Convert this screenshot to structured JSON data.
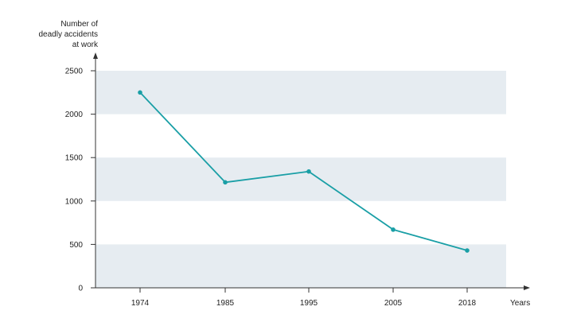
{
  "chart_data": {
    "type": "line",
    "title": "",
    "ylabel_lines": [
      "Number of",
      "deadly accidents",
      "at work"
    ],
    "xlabel": "Years",
    "categories": [
      "1974",
      "1985",
      "1995",
      "2005",
      "2018"
    ],
    "values": [
      2250,
      1215,
      1340,
      670,
      430
    ],
    "ylim": [
      0,
      2500
    ],
    "yticks": [
      0,
      500,
      1000,
      1500,
      2000,
      2500
    ],
    "ytick_labels": [
      "0",
      "500",
      "1000",
      "1500",
      "2000",
      "2500"
    ],
    "grid": "alternating horizontal bands",
    "legend": "none",
    "colors": {
      "line": "#1a9fa6",
      "band": "#e6ecf1",
      "axis": "#333333"
    }
  }
}
